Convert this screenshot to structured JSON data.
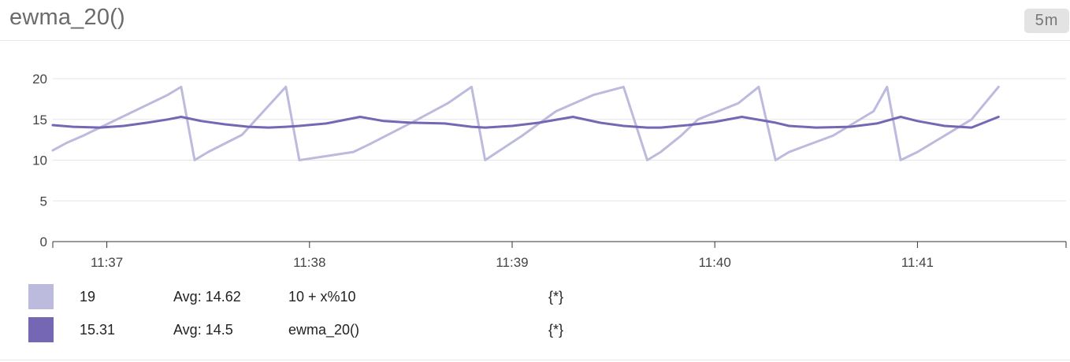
{
  "header": {
    "title": "ewma_20()",
    "time_badge": "5m"
  },
  "chart_data": {
    "type": "line",
    "ylim": [
      0,
      20
    ],
    "yticks": [
      0,
      5,
      10,
      15,
      20
    ],
    "xticks": [
      "11:37",
      "11:38",
      "11:39",
      "11:40",
      "11:41"
    ],
    "xlim": [
      "11:36:44",
      "11:41:44"
    ],
    "grid": true,
    "legend": "bottom",
    "series": [
      {
        "name": "10 + x%10",
        "color": "#bcbadd",
        "x": [
          "11:36:44",
          "11:36:48",
          "11:36:53",
          "11:37:08",
          "11:37:18",
          "11:37:22",
          "11:37:26",
          "11:37:30",
          "11:37:40",
          "11:37:53",
          "11:37:57",
          "11:38:13",
          "11:38:18",
          "11:38:32",
          "11:38:41",
          "11:38:48",
          "11:38:52",
          "11:39:03",
          "11:39:13",
          "11:39:24",
          "11:39:33",
          "11:39:40",
          "11:39:44",
          "11:39:50",
          "11:39:55",
          "11:40:07",
          "11:40:13",
          "11:40:18",
          "11:40:22",
          "11:40:35",
          "11:40:47",
          "11:40:51",
          "11:40:55",
          "11:41:00",
          "11:41:16",
          "11:41:24"
        ],
        "values": [
          11.2,
          12.1,
          13.0,
          16.0,
          18.0,
          19.0,
          10.0,
          11.0,
          13.1,
          19.0,
          10.0,
          11.0,
          12.0,
          15.0,
          17.0,
          19.0,
          10.0,
          13.0,
          16.0,
          18.0,
          19.0,
          10.0,
          11.0,
          13.0,
          15.0,
          17.0,
          19.0,
          10.0,
          11.0,
          13.0,
          16.0,
          19.0,
          10.0,
          11.0,
          15.0,
          19.0
        ]
      },
      {
        "name": "ewma_20()",
        "color": "#7567b3",
        "x": [
          "11:36:44",
          "11:36:50",
          "11:36:58",
          "11:37:05",
          "11:37:12",
          "11:37:18",
          "11:37:22",
          "11:37:28",
          "11:37:35",
          "11:37:42",
          "11:37:48",
          "11:37:53",
          "11:37:57",
          "11:38:05",
          "11:38:15",
          "11:38:22",
          "11:38:30",
          "11:38:40",
          "11:38:48",
          "11:38:52",
          "11:39:00",
          "11:39:08",
          "11:39:18",
          "11:39:26",
          "11:39:33",
          "11:39:40",
          "11:39:44",
          "11:39:52",
          "11:40:00",
          "11:40:08",
          "11:40:18",
          "11:40:22",
          "11:40:30",
          "11:40:40",
          "11:40:48",
          "11:40:55",
          "11:41:00",
          "11:41:08",
          "11:41:16",
          "11:41:24"
        ],
        "values": [
          14.3,
          14.1,
          14.0,
          14.2,
          14.6,
          15.0,
          15.31,
          14.8,
          14.4,
          14.1,
          14.0,
          14.1,
          14.2,
          14.5,
          15.31,
          14.8,
          14.6,
          14.5,
          14.1,
          14.0,
          14.2,
          14.6,
          15.31,
          14.6,
          14.2,
          14.0,
          14.0,
          14.3,
          14.7,
          15.31,
          14.6,
          14.2,
          14.0,
          14.1,
          14.5,
          15.31,
          14.8,
          14.2,
          14.0,
          15.31
        ]
      }
    ]
  },
  "legend": {
    "rows": [
      {
        "color": "#bcbadd",
        "value": "19",
        "avg": "Avg: 14.62",
        "query": "10 + x%10",
        "scope": "{*}"
      },
      {
        "color": "#7567b3",
        "value": "15.31",
        "avg": "Avg: 14.5",
        "query": "ewma_20()",
        "scope": "{*}"
      }
    ]
  }
}
